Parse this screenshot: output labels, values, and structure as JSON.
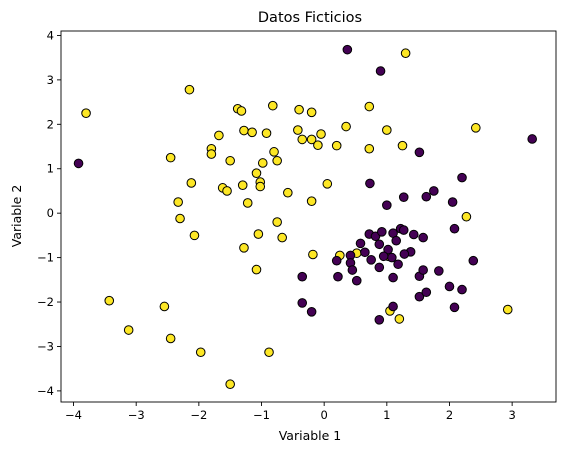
{
  "chart_data": {
    "type": "scatter",
    "title": "Datos Ficticios",
    "xlabel": "Variable 1",
    "ylabel": "Variable 2",
    "xlim": [
      -4.2,
      3.7
    ],
    "ylim": [
      -4.25,
      4.1
    ],
    "xticks": [
      -4,
      -3,
      -2,
      -1,
      0,
      1,
      2,
      3
    ],
    "yticks": [
      -4,
      -3,
      -2,
      -1,
      0,
      1,
      2,
      3,
      4
    ],
    "xtick_labels": [
      "−4",
      "−3",
      "−2",
      "−1",
      "0",
      "1",
      "2",
      "3"
    ],
    "ytick_labels": [
      "−4",
      "−3",
      "−2",
      "−1",
      "0",
      "1",
      "2",
      "3",
      "4"
    ],
    "grid": false,
    "legend": "none",
    "edge_color": "#000000",
    "series": [
      {
        "color": "#fde725",
        "points": [
          [
            -3.8,
            2.25
          ],
          [
            -2.15,
            2.78
          ],
          [
            -1.38,
            2.35
          ],
          [
            -1.32,
            2.3
          ],
          [
            -0.82,
            2.42
          ],
          [
            -0.4,
            2.33
          ],
          [
            -0.2,
            2.27
          ],
          [
            0.72,
            2.4
          ],
          [
            1.3,
            3.6
          ],
          [
            -1.68,
            1.75
          ],
          [
            -1.8,
            1.45
          ],
          [
            -1.8,
            1.33
          ],
          [
            -1.28,
            1.86
          ],
          [
            -1.15,
            1.82
          ],
          [
            -0.92,
            1.8
          ],
          [
            -0.42,
            1.87
          ],
          [
            -0.35,
            1.66
          ],
          [
            -0.2,
            1.66
          ],
          [
            -0.1,
            1.53
          ],
          [
            -0.05,
            1.78
          ],
          [
            0.2,
            1.52
          ],
          [
            0.35,
            1.95
          ],
          [
            0.72,
            1.45
          ],
          [
            1.0,
            1.87
          ],
          [
            1.25,
            1.52
          ],
          [
            2.42,
            1.92
          ],
          [
            -2.45,
            1.25
          ],
          [
            -1.5,
            1.18
          ],
          [
            -1.62,
            0.57
          ],
          [
            -1.55,
            0.5
          ],
          [
            -1.08,
            0.9
          ],
          [
            -0.98,
            1.13
          ],
          [
            -0.75,
            1.18
          ],
          [
            -0.8,
            1.38
          ],
          [
            -1.3,
            0.63
          ],
          [
            -1.02,
            0.7
          ],
          [
            -1.02,
            0.6
          ],
          [
            -0.58,
            0.46
          ],
          [
            0.05,
            0.66
          ],
          [
            -2.12,
            0.68
          ],
          [
            -2.33,
            0.25
          ],
          [
            -1.22,
            0.23
          ],
          [
            -2.3,
            -0.12
          ],
          [
            -2.07,
            -0.5
          ],
          [
            -0.75,
            -0.2
          ],
          [
            -0.67,
            -0.55
          ],
          [
            -1.28,
            -0.78
          ],
          [
            -1.05,
            -0.47
          ],
          [
            -1.08,
            -1.27
          ],
          [
            -0.2,
            0.27
          ],
          [
            -0.18,
            -0.93
          ],
          [
            0.25,
            -0.95
          ],
          [
            0.52,
            -0.9
          ],
          [
            2.27,
            -0.08
          ],
          [
            -3.43,
            -1.97
          ],
          [
            -2.55,
            -2.1
          ],
          [
            -3.12,
            -2.63
          ],
          [
            -2.45,
            -2.82
          ],
          [
            -1.97,
            -3.13
          ],
          [
            -0.88,
            -3.13
          ],
          [
            -1.5,
            -3.85
          ],
          [
            1.05,
            -2.2
          ],
          [
            1.2,
            -2.38
          ],
          [
            2.93,
            -2.17
          ],
          [
            1.02,
            -0.97
          ]
        ]
      },
      {
        "color": "#440154",
        "points": [
          [
            -3.92,
            1.12
          ],
          [
            0.37,
            3.68
          ],
          [
            0.9,
            3.2
          ],
          [
            1.52,
            1.37
          ],
          [
            3.32,
            1.67
          ],
          [
            0.73,
            0.67
          ],
          [
            1.75,
            0.5
          ],
          [
            1.63,
            0.37
          ],
          [
            2.2,
            0.8
          ],
          [
            2.05,
            0.25
          ],
          [
            1.0,
            0.18
          ],
          [
            1.27,
            0.36
          ],
          [
            2.08,
            -0.35
          ],
          [
            0.2,
            -1.07
          ],
          [
            0.42,
            -0.95
          ],
          [
            0.58,
            -0.68
          ],
          [
            0.65,
            -0.88
          ],
          [
            0.72,
            -0.47
          ],
          [
            0.82,
            -0.52
          ],
          [
            0.88,
            -0.7
          ],
          [
            0.92,
            -0.42
          ],
          [
            1.1,
            -0.45
          ],
          [
            1.15,
            -0.62
          ],
          [
            1.22,
            -0.35
          ],
          [
            1.27,
            -0.38
          ],
          [
            1.43,
            -0.48
          ],
          [
            1.58,
            -0.55
          ],
          [
            1.38,
            -0.87
          ],
          [
            1.28,
            -0.92
          ],
          [
            1.08,
            -1.0
          ],
          [
            1.02,
            -0.82
          ],
          [
            0.95,
            -0.97
          ],
          [
            0.88,
            -1.22
          ],
          [
            0.75,
            -1.05
          ],
          [
            0.42,
            -1.12
          ],
          [
            0.45,
            -1.28
          ],
          [
            0.52,
            -1.52
          ],
          [
            0.22,
            -1.43
          ],
          [
            1.18,
            -1.15
          ],
          [
            1.1,
            -1.45
          ],
          [
            1.52,
            -1.42
          ],
          [
            1.58,
            -1.28
          ],
          [
            1.83,
            -1.3
          ],
          [
            2.38,
            -1.07
          ],
          [
            -0.35,
            -1.43
          ],
          [
            -0.35,
            -2.02
          ],
          [
            -0.2,
            -2.22
          ],
          [
            0.88,
            -2.4
          ],
          [
            1.1,
            -2.1
          ],
          [
            1.52,
            -1.88
          ],
          [
            1.63,
            -1.78
          ],
          [
            2.0,
            -1.65
          ],
          [
            2.08,
            -2.12
          ],
          [
            2.2,
            -1.72
          ]
        ]
      }
    ]
  }
}
